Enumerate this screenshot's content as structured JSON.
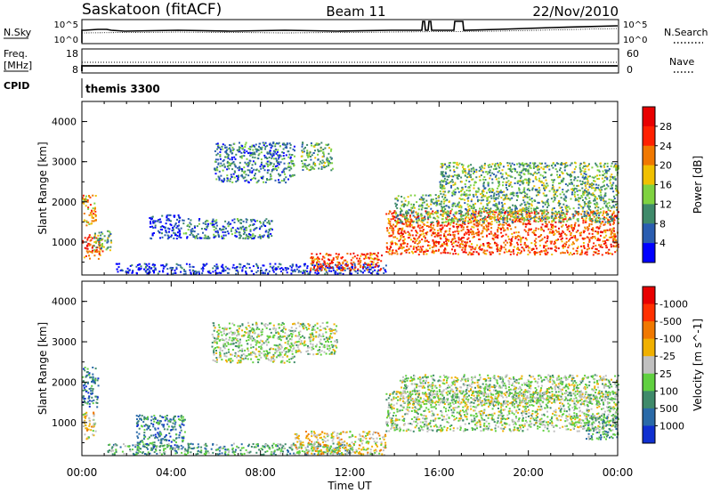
{
  "header": {
    "station": "Saskatoon (fitACF)",
    "beam": "Beam 11",
    "date": "22/Nov/2010"
  },
  "strip_panels": {
    "nsky": {
      "label": "N.Sky",
      "tick_top": "10^5",
      "tick_bottom": "10^0",
      "right_tick_top": "10^5",
      "right_tick_bottom": "10^0",
      "right_label": "N.Search"
    },
    "freq": {
      "label": "Freq.",
      "unit": "[MHz]",
      "tick_top": "18",
      "tick_bottom": "8",
      "right_tick_top": "60",
      "right_tick_bottom": "0",
      "right_label": "Nave"
    },
    "cpid": {
      "label": "CPID",
      "program": "themis 3300"
    }
  },
  "chart_data": [
    {
      "type": "heatmap",
      "name": "power",
      "ylabel": "Slant Range [km]",
      "ylim": [
        180,
        4500
      ],
      "y_ticks": [
        "1000",
        "2000",
        "3000",
        "4000"
      ],
      "xlim_hours": [
        0,
        24
      ],
      "colorbar": {
        "label": "Power [dB]",
        "tick_labels": [
          "4",
          "8",
          "12",
          "16",
          "20",
          "24",
          "28"
        ],
        "colors": [
          "#0000ff",
          "#2a5db0",
          "#3f8a6a",
          "#7fd240",
          "#f0c000",
          "#f07800",
          "#ff2000",
          "#e80000"
        ]
      },
      "regions": [
        {
          "t0": 0.0,
          "t1": 0.9,
          "r0": 600,
          "r1": 1200,
          "level": 6
        },
        {
          "t0": 0.0,
          "t1": 0.6,
          "r0": 1400,
          "r1": 2200,
          "level": 5
        },
        {
          "t0": 0.5,
          "t1": 1.3,
          "r0": 800,
          "r1": 1300,
          "level": 3
        },
        {
          "t0": 1.5,
          "t1": 13.6,
          "r0": 220,
          "r1": 480,
          "level": 1
        },
        {
          "t0": 3.0,
          "t1": 4.5,
          "r0": 1100,
          "r1": 1700,
          "level": 1
        },
        {
          "t0": 4.5,
          "t1": 8.5,
          "r0": 1100,
          "r1": 1600,
          "level": 2
        },
        {
          "t0": 5.9,
          "t1": 9.5,
          "r0": 2500,
          "r1": 3500,
          "level": 2
        },
        {
          "t0": 9.8,
          "t1": 11.2,
          "r0": 2800,
          "r1": 3500,
          "level": 3
        },
        {
          "t0": 10.2,
          "t1": 13.4,
          "r0": 300,
          "r1": 750,
          "level": 6
        },
        {
          "t0": 13.6,
          "t1": 24.0,
          "r0": 700,
          "r1": 1800,
          "level": 6
        },
        {
          "t0": 14.0,
          "t1": 24.0,
          "r0": 1500,
          "r1": 2200,
          "level": 3
        },
        {
          "t0": 16.0,
          "t1": 24.0,
          "r0": 2200,
          "r1": 3000,
          "level": 3
        }
      ]
    },
    {
      "type": "heatmap",
      "name": "velocity",
      "ylabel": "Slant Range [km]",
      "ylim": [
        180,
        4500
      ],
      "y_ticks": [
        "1000",
        "2000",
        "3000",
        "4000"
      ],
      "xlim_hours": [
        0,
        24
      ],
      "x_ticks": [
        "00:00",
        "04:00",
        "08:00",
        "12:00",
        "16:00",
        "20:00",
        "00:00"
      ],
      "xlabel": "Time UT",
      "colorbar": {
        "label": "Velocity [m s^-1]",
        "tick_labels": [
          "1000",
          "500",
          "100",
          "25",
          "-25",
          "-100",
          "-500",
          "-1000"
        ],
        "colors": [
          "#1030d0",
          "#2a6aa8",
          "#3f8a6a",
          "#60d040",
          "#c0c0c0",
          "#f0b000",
          "#f07800",
          "#ff3000",
          "#e80000"
        ]
      },
      "regions": [
        {
          "t0": 0.0,
          "t1": 0.6,
          "r0": 600,
          "r1": 1300,
          "level": 5
        },
        {
          "t0": 0.0,
          "t1": 0.7,
          "r0": 1400,
          "r1": 2400,
          "level": 2
        },
        {
          "t0": 1.0,
          "t1": 12.0,
          "r0": 220,
          "r1": 500,
          "level": 3
        },
        {
          "t0": 2.4,
          "t1": 4.6,
          "r0": 400,
          "r1": 1200,
          "level": 2
        },
        {
          "t0": 5.8,
          "t1": 9.6,
          "r0": 2500,
          "r1": 3500,
          "level": 4
        },
        {
          "t0": 9.6,
          "t1": 11.4,
          "r0": 2700,
          "r1": 3500,
          "level": 4
        },
        {
          "t0": 9.5,
          "t1": 13.6,
          "r0": 220,
          "r1": 800,
          "level": 5
        },
        {
          "t0": 13.6,
          "t1": 24.0,
          "r0": 800,
          "r1": 1800,
          "level": 4
        },
        {
          "t0": 14.2,
          "t1": 24.0,
          "r0": 1500,
          "r1": 2200,
          "level": 4
        },
        {
          "t0": 22.5,
          "t1": 24.0,
          "r0": 600,
          "r1": 1200,
          "level": 3
        }
      ]
    }
  ]
}
